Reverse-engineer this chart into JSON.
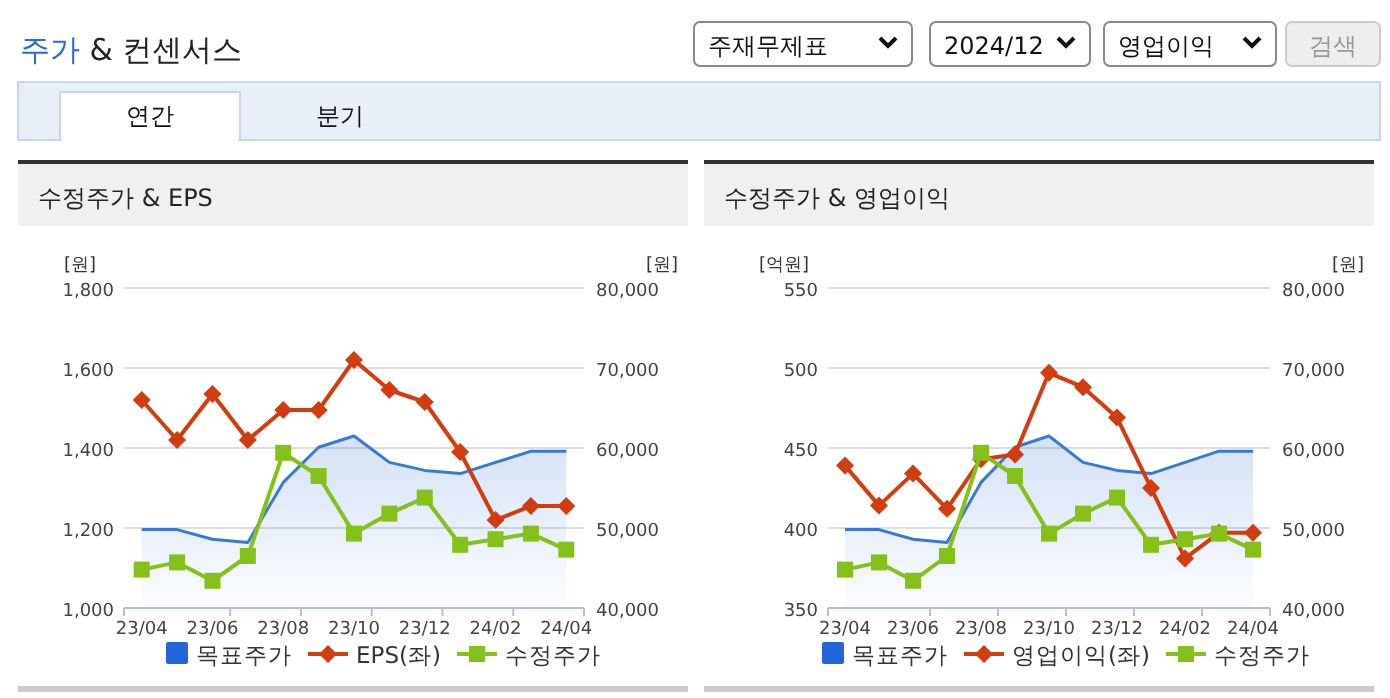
{
  "chart_data": [
    {
      "type": "other",
      "title": "주가 & 컨센서스",
      "annotations": [
        "주재무제표",
        "2024/12",
        "영업이익",
        "검색",
        "연간",
        "분기"
      ]
    },
    {
      "type": "line",
      "title": "수정주가 & EPS",
      "ylabel": "[원]",
      "y2label": "[원]",
      "categories": [
        "23/04",
        null,
        "23/06",
        null,
        "23/08",
        null,
        "23/10",
        null,
        "23/12",
        null,
        "24/02",
        null,
        "24/04"
      ],
      "ylim": [
        1000,
        1800
      ],
      "yticks": [
        {
          "value": 1000,
          "label": "1,000"
        },
        {
          "value": 1200,
          "label": "1,200"
        },
        {
          "value": 1400,
          "label": "1,400"
        },
        {
          "value": 1600,
          "label": "1,600"
        },
        {
          "value": 1800,
          "label": "1,800"
        }
      ],
      "y2lim": [
        40000,
        80000
      ],
      "y2ticks": [
        {
          "value": 40000,
          "label": "40,000"
        },
        {
          "value": 50000,
          "label": "50,000"
        },
        {
          "value": 60000,
          "label": "60,000"
        },
        {
          "value": 70000,
          "label": "70,000"
        },
        {
          "value": 80000,
          "label": "80,000"
        }
      ],
      "grid": "y",
      "legend": "bottom",
      "series": [
        {
          "name": "목표주가",
          "type": "area",
          "axis": "y2",
          "color": "#3a78d8",
          "marker": "none",
          "values": [
            49800,
            49800,
            48600,
            48200,
            55700,
            60100,
            61500,
            58200,
            57200,
            56800,
            58200,
            59600,
            59600
          ]
        },
        {
          "name": "EPS(좌)",
          "type": "line",
          "axis": "y",
          "color": "#d23c0f",
          "marker": "diamond",
          "values": [
            1520,
            1420,
            1535,
            1420,
            1495,
            1495,
            1620,
            1545,
            1515,
            1390,
            1220,
            1255,
            1255
          ]
        },
        {
          "name": "수정주가",
          "type": "line",
          "axis": "y2",
          "color": "#84c11a",
          "marker": "square",
          "values": [
            44800,
            45700,
            43400,
            46500,
            59400,
            56500,
            49300,
            51800,
            53800,
            47900,
            48600,
            49300,
            47300
          ]
        }
      ]
    },
    {
      "type": "line",
      "title": "수정주가 & 영업이익",
      "ylabel": "[억원]",
      "y2label": "[원]",
      "categories": [
        "23/04",
        null,
        "23/06",
        null,
        "23/08",
        null,
        "23/10",
        null,
        "23/12",
        null,
        "24/02",
        null,
        "24/04"
      ],
      "ylim": [
        350,
        550
      ],
      "yticks": [
        350,
        400,
        450,
        500,
        550
      ],
      "y2lim": [
        40000,
        80000
      ],
      "y2ticks": [
        {
          "value": 40000,
          "label": "40,000"
        },
        {
          "value": 50000,
          "label": "50,000"
        },
        {
          "value": 60000,
          "label": "60,000"
        },
        {
          "value": 70000,
          "label": "70,000"
        },
        {
          "value": 80000,
          "label": "80,000"
        }
      ],
      "grid": "y",
      "legend": "bottom",
      "series": [
        {
          "name": "목표주가",
          "type": "area",
          "axis": "y2",
          "color": "#3a78d8",
          "marker": "none",
          "values": [
            49800,
            49800,
            48600,
            48200,
            55700,
            60100,
            61500,
            58200,
            57200,
            56800,
            58200,
            59600,
            59600
          ]
        },
        {
          "name": "영업이익(좌)",
          "type": "line",
          "axis": "y",
          "color": "#d23c0f",
          "marker": "diamond",
          "values": [
            439,
            414,
            434,
            412,
            443,
            446,
            497,
            488,
            469,
            425,
            381,
            397,
            397
          ]
        },
        {
          "name": "수정주가",
          "type": "line",
          "axis": "y2",
          "color": "#84c11a",
          "marker": "square",
          "values": [
            44800,
            45700,
            43400,
            46500,
            59400,
            56500,
            49300,
            51800,
            53800,
            47900,
            48600,
            49300,
            47300
          ]
        }
      ]
    }
  ]
}
